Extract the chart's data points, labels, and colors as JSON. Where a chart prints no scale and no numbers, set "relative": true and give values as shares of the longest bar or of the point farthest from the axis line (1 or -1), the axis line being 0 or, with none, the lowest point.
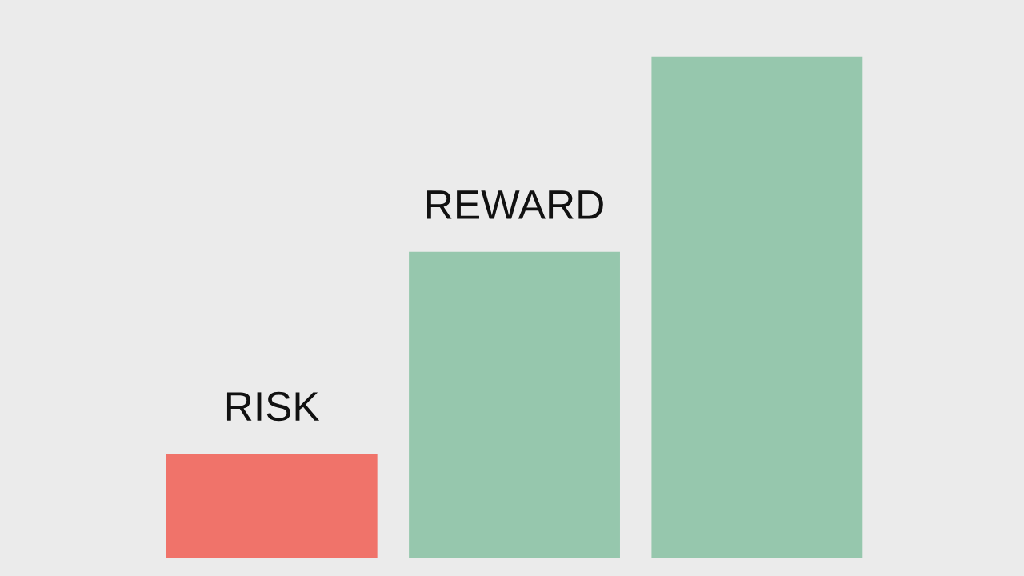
{
  "chart_data": {
    "type": "bar",
    "relative": true,
    "categories": [
      null,
      null,
      null
    ],
    "values": [
      0.209,
      0.611,
      1
    ],
    "colors": [
      "#f0736a",
      "#96c7ad",
      "#96c7ad"
    ],
    "annotations": [
      "RISK",
      "REWARD"
    ]
  }
}
